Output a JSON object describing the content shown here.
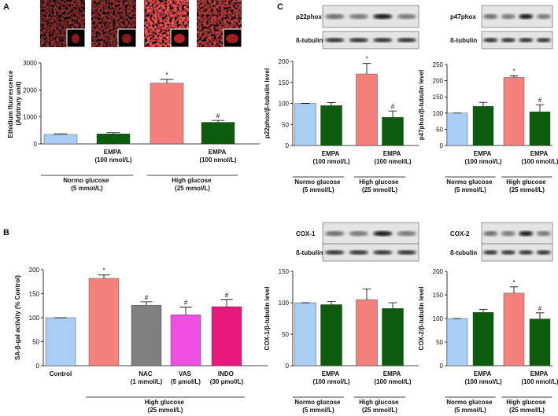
{
  "panel_labels": [
    "A",
    "B",
    "C"
  ],
  "chart_data": [
    {
      "type": "bar",
      "ylabel": "Ethidium fluorescence (Arbitrary unit)",
      "categories": [
        null,
        "EMPA (100 nmol/L)",
        null,
        "EMPA (100 nmol/L)"
      ],
      "values": [
        350,
        370,
        2250,
        800
      ],
      "errors": [
        25,
        45,
        140,
        70
      ],
      "colors": [
        "#a9cdf5",
        "#0d5c0d",
        "#f4817c",
        "#0d5c0d"
      ],
      "annotations": [
        null,
        null,
        "*",
        "#"
      ],
      "groups": [
        "Normo glucose (5 mmol/L)",
        "High glucose (25 mmol/L)"
      ],
      "ylim": [
        0,
        3000
      ],
      "yticks": [
        0,
        1000,
        2000,
        3000
      ]
    },
    {
      "type": "bar",
      "ylabel": "SA-β-gal activity (% Control)",
      "categories": [
        "Control",
        null,
        "NAC (1 mmol/L)",
        "VAS (5 µmol/L)",
        "INDO (30 µmol/L)"
      ],
      "values": [
        100,
        182,
        126,
        106,
        123
      ],
      "errors": [
        0,
        7,
        7,
        16,
        15
      ],
      "colors": [
        "#a9cdf5",
        "#f4817c",
        "#808080",
        "#ee4fe0",
        "#e8187c"
      ],
      "annotations": [
        null,
        "*",
        "#",
        "#",
        "#"
      ],
      "groups": [
        "High glucose (25 mmol/L)"
      ],
      "ylim": [
        0,
        200
      ],
      "yticks": [
        0,
        50,
        100,
        150,
        200
      ]
    },
    {
      "type": "bar",
      "ylabel": "p22phox/β-tubulin level",
      "blots": [
        "p22phox",
        "ß-tubulin"
      ],
      "categories": [
        null,
        "EMPA (100 nmol/L)",
        null,
        "EMPA (100 nmol/L)"
      ],
      "values": [
        100,
        95,
        170,
        67
      ],
      "errors": [
        0,
        7,
        25,
        15
      ],
      "colors": [
        "#a9cdf5",
        "#0d5c0d",
        "#f4817c",
        "#0d5c0d"
      ],
      "annotations": [
        null,
        null,
        "*",
        "#"
      ],
      "groups": [
        "Normo glucose (5 mmol/L)",
        "High glucose (25 mmol/L)"
      ],
      "ylim": [
        0,
        200
      ],
      "yticks": [
        0,
        50,
        100,
        150,
        200
      ]
    },
    {
      "type": "bar",
      "ylabel": "p47phox/β-tubulin level",
      "blots": [
        "p47phox",
        "ß-tubulin"
      ],
      "categories": [
        null,
        "EMPA (100 nmol/L)",
        null,
        "EMPA (100 nmol/L)"
      ],
      "values": [
        100,
        121,
        210,
        104
      ],
      "errors": [
        0,
        12,
        5,
        22
      ],
      "colors": [
        "#a9cdf5",
        "#0d5c0d",
        "#f4817c",
        "#0d5c0d"
      ],
      "annotations": [
        null,
        null,
        "*",
        "#"
      ],
      "groups": [
        "Normo glucose (5 mmol/L)",
        "High glucose (25 mmol/L)"
      ],
      "ylim": [
        0,
        250
      ],
      "yticks": [
        0,
        50,
        100,
        150,
        200,
        250
      ]
    },
    {
      "type": "bar",
      "ylabel": "COX-1/β-tubulin level",
      "blots": [
        "COX-1",
        "ß-tubulin"
      ],
      "categories": [
        null,
        "EMPA (100 nmol/L)",
        null,
        "EMPA (100 nmol/L)"
      ],
      "values": [
        100,
        97,
        105,
        91
      ],
      "errors": [
        0,
        5,
        17,
        9
      ],
      "colors": [
        "#a9cdf5",
        "#0d5c0d",
        "#f4817c",
        "#0d5c0d"
      ],
      "annotations": [
        null,
        null,
        null,
        null
      ],
      "groups": [
        "Normo glucose (5 mmol/L)",
        "High glucose (25 mmol/L)"
      ],
      "ylim": [
        0,
        150
      ],
      "yticks": [
        0,
        50,
        100,
        150
      ]
    },
    {
      "type": "bar",
      "ylabel": "COX-2/β-tubulin level",
      "blots": [
        "COX-2",
        "ß-tubulin"
      ],
      "categories": [
        null,
        "EMPA (100 nmol/L)",
        null,
        "EMPA (100 nmol/L)"
      ],
      "values": [
        100,
        113,
        154,
        99
      ],
      "errors": [
        0,
        6,
        13,
        13
      ],
      "colors": [
        "#a9cdf5",
        "#0d5c0d",
        "#f4817c",
        "#0d5c0d"
      ],
      "annotations": [
        null,
        null,
        "*",
        "#"
      ],
      "groups": [
        "Normo glucose (5 mmol/L)",
        "High glucose (25 mmol/L)"
      ],
      "ylim": [
        0,
        200
      ],
      "yticks": [
        0,
        50,
        100,
        150,
        200
      ]
    }
  ]
}
